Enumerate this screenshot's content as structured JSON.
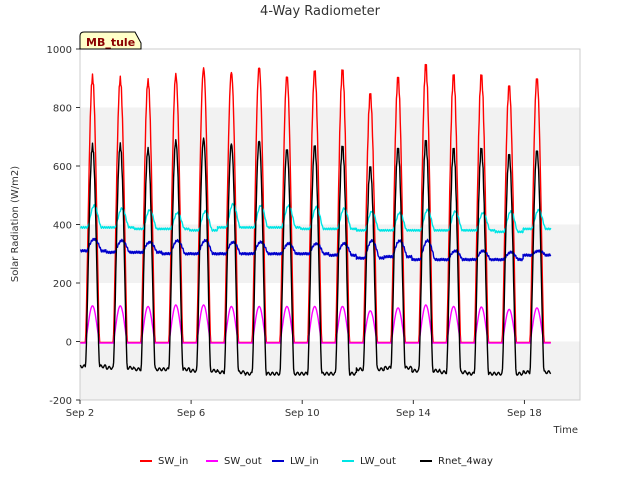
{
  "chart_data": {
    "type": "line",
    "title": "4-Way Radiometer",
    "xlabel": "Time",
    "ylabel": "Solar Radiation (W/m2)",
    "site_label": "MB_tule",
    "xlim_days": [
      2.0,
      20.0
    ],
    "ylim": [
      -200,
      1000
    ],
    "yticks": [
      -200,
      0,
      200,
      400,
      600,
      800,
      1000
    ],
    "xticks": [
      {
        "label": "Sep 2",
        "day": 2
      },
      {
        "label": "Sep 6",
        "day": 6
      },
      {
        "label": "Sep 10",
        "day": 10
      },
      {
        "label": "Sep 14",
        "day": 14
      },
      {
        "label": "Sep 18",
        "day": 18
      }
    ],
    "grid": "alternating-horizontal-bands",
    "legend_position": "bottom",
    "series": [
      {
        "name": "SW_in",
        "color": "#ff0000",
        "day_peak_x": [
          2.45,
          3.45,
          4.45,
          5.45,
          6.45,
          7.45,
          8.45,
          9.45,
          10.45,
          11.45,
          12.45,
          13.45,
          14.45,
          15.45,
          16.45,
          17.45,
          18.45
        ],
        "daily_peaks": [
          905,
          890,
          900,
          905,
          935,
          925,
          930,
          915,
          920,
          925,
          850,
          890,
          950,
          905,
          905,
          880,
          890
        ],
        "night_value": -3
      },
      {
        "name": "SW_out",
        "color": "#ff00ff",
        "daily_peaks": [
          122,
          122,
          120,
          125,
          125,
          120,
          120,
          120,
          120,
          120,
          105,
          115,
          125,
          120,
          118,
          110,
          115
        ],
        "night_value": -5
      },
      {
        "name": "LW_in",
        "color": "#0000cc",
        "daily_peaks": [
          350,
          345,
          340,
          345,
          345,
          340,
          340,
          335,
          335,
          335,
          345,
          345,
          345,
          310,
          310,
          305,
          310
        ],
        "daily_lows": [
          310,
          305,
          305,
          300,
          300,
          300,
          300,
          300,
          300,
          295,
          285,
          290,
          280,
          280,
          280,
          280,
          295
        ]
      },
      {
        "name": "LW_out",
        "color": "#00e5e5",
        "daily_peaks": [
          465,
          455,
          450,
          440,
          445,
          470,
          465,
          465,
          460,
          455,
          445,
          440,
          450,
          445,
          440,
          445,
          450
        ],
        "daily_lows": [
          390,
          390,
          385,
          385,
          380,
          390,
          390,
          390,
          385,
          385,
          380,
          380,
          380,
          380,
          380,
          375,
          385
        ]
      },
      {
        "name": "Rnet_4way",
        "color": "#000000",
        "daily_peaks": [
          670,
          665,
          665,
          680,
          695,
          680,
          680,
          665,
          665,
          665,
          600,
          650,
          690,
          655,
          655,
          645,
          645
        ],
        "night_values": [
          -85,
          -90,
          -95,
          -95,
          -100,
          -105,
          -110,
          -110,
          -110,
          -110,
          -95,
          -90,
          -100,
          -105,
          -110,
          -110,
          -105
        ]
      }
    ]
  }
}
